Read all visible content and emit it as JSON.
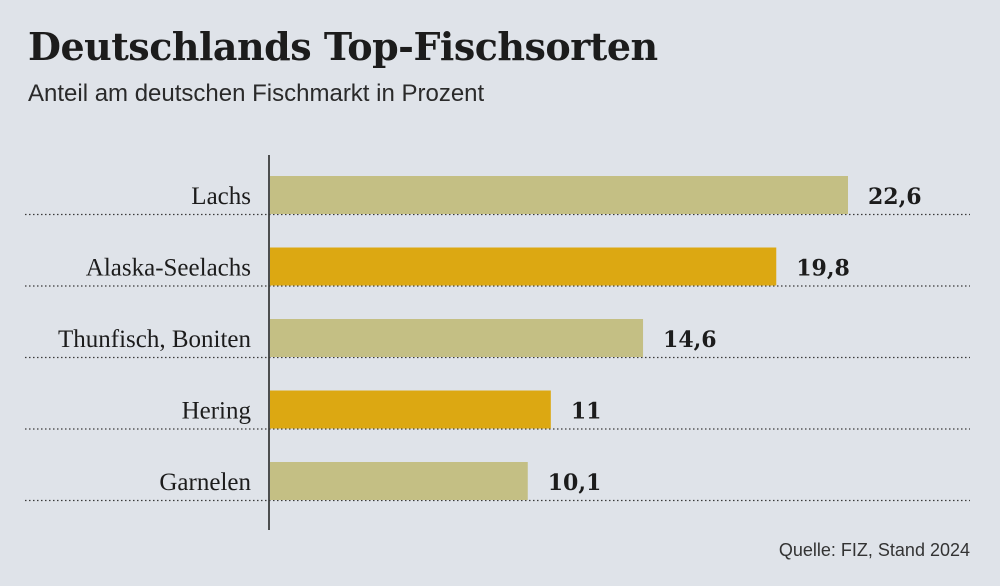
{
  "chart_data": {
    "type": "bar",
    "orientation": "horizontal",
    "title": "Deutschlands Top-Fischsorten",
    "subtitle": "Anteil am deutschen Fischmarkt in Prozent",
    "categories": [
      "Lachs",
      "Alaska-Seelachs",
      "Thunfisch, Boniten",
      "Hering",
      "Garnelen"
    ],
    "values": [
      22.6,
      19.8,
      14.6,
      11,
      10.1
    ],
    "value_labels": [
      "22,6",
      "19,8",
      "14,6",
      "11",
      "10,1"
    ],
    "bar_colors": [
      "#c4bf84",
      "#dca812",
      "#c4bf84",
      "#dca812",
      "#c4bf84"
    ],
    "xlim": [
      0,
      25
    ],
    "grid": false,
    "source": "Quelle: FIZ, Stand 2024"
  }
}
